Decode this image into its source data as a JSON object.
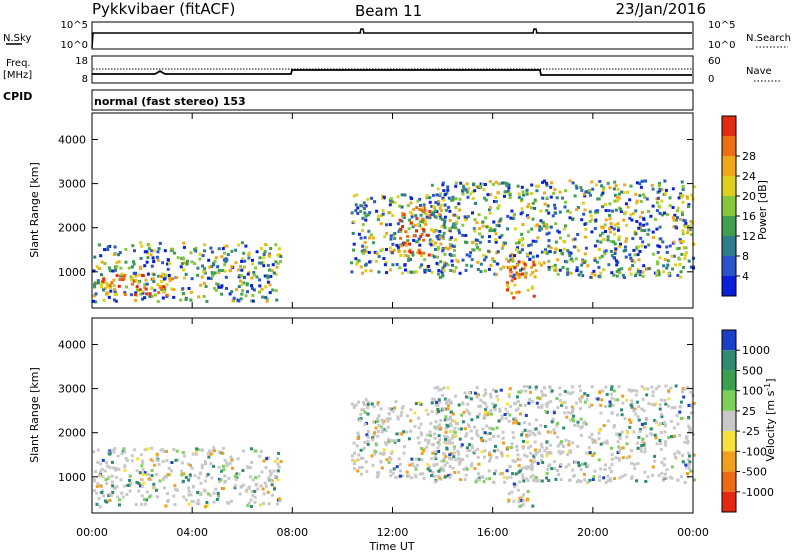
{
  "header": {
    "title": "Pykkvibaer (fitACF)",
    "beam": "Beam 11",
    "date": "23/Jan/2016"
  },
  "strip_panels": {
    "nsky": {
      "label": "N.Sky",
      "left_ticks": [
        "10^5",
        "10^0"
      ],
      "right_ticks": [
        "10^5",
        "10^0"
      ],
      "right_label": "N.Search"
    },
    "freq": {
      "label_line1": "Freq.",
      "label_line2": "[MHz]",
      "left_ticks": [
        "18",
        "8"
      ],
      "right_ticks": [
        "60",
        "0"
      ],
      "right_label": "Nave"
    },
    "cpid": {
      "label": "CPID",
      "text": "normal (fast stereo) 153"
    }
  },
  "chart_data": [
    {
      "type": "heatmap",
      "quantity": "Power",
      "xlabel": "",
      "ylabel": "Slant Range [km]",
      "y_ticks": [
        "1000",
        "2000",
        "3000",
        "4000"
      ],
      "ylim": [
        180,
        4600
      ],
      "xlim_hours": [
        0,
        24
      ],
      "colorbar": {
        "label": "Power [dB]",
        "tick_labels": [
          "4",
          "8",
          "12",
          "16",
          "20",
          "24",
          "28"
        ],
        "colors": [
          "#0a1fd8",
          "#2a55c8",
          "#2f7d8a",
          "#3f9e50",
          "#86c83c",
          "#ddd01e",
          "#f0a81a",
          "#ec6f14",
          "#e22b10"
        ]
      },
      "echo_regions": [
        {
          "t0": 0.0,
          "t1": 7.5,
          "r0": 350,
          "r1": 1700,
          "level": "mixed"
        },
        {
          "t0": 0.3,
          "t1": 3.3,
          "r0": 500,
          "r1": 1000,
          "level": "strong"
        },
        {
          "t0": 10.3,
          "t1": 14.5,
          "r0": 1000,
          "r1": 2800,
          "level": "mixed"
        },
        {
          "t0": 12.2,
          "t1": 13.5,
          "r0": 1400,
          "r1": 2500,
          "level": "strong"
        },
        {
          "t0": 13.5,
          "t1": 24.0,
          "r0": 900,
          "r1": 3100,
          "level": "mixed"
        },
        {
          "t0": 16.5,
          "t1": 17.6,
          "r0": 350,
          "r1": 1300,
          "level": "strong"
        }
      ]
    },
    {
      "type": "heatmap",
      "quantity": "Velocity",
      "xlabel": "Time UT",
      "ylabel": "Slant Range [km]",
      "y_ticks": [
        "1000",
        "2000",
        "3000",
        "4000"
      ],
      "ylim": [
        180,
        4600
      ],
      "x_ticks": [
        "00:00",
        "04:00",
        "08:00",
        "12:00",
        "16:00",
        "20:00",
        "00:00"
      ],
      "xlim_hours": [
        0,
        24
      ],
      "colorbar": {
        "label": "Velocity [m s",
        "label_sup": "-1",
        "tick_labels": [
          "1000",
          "500",
          "100",
          "25",
          "-25",
          "-100",
          "-500",
          "-1000"
        ],
        "colors": [
          "#1b3fc9",
          "#2e8a70",
          "#3aa050",
          "#7cd05a",
          "#c8c8c8",
          "#f5e23a",
          "#f0a01c",
          "#ec6a14",
          "#e42812"
        ]
      },
      "echo_regions": [
        {
          "t0": 0.0,
          "t1": 7.5,
          "r0": 350,
          "r1": 1700,
          "level": "mixed"
        },
        {
          "t0": 10.3,
          "t1": 14.5,
          "r0": 1000,
          "r1": 2800,
          "level": "mixed"
        },
        {
          "t0": 13.5,
          "t1": 24.0,
          "r0": 900,
          "r1": 3100,
          "level": "mixed"
        },
        {
          "t0": 16.5,
          "t1": 17.6,
          "r0": 350,
          "r1": 1300,
          "level": "mixed"
        }
      ]
    }
  ]
}
